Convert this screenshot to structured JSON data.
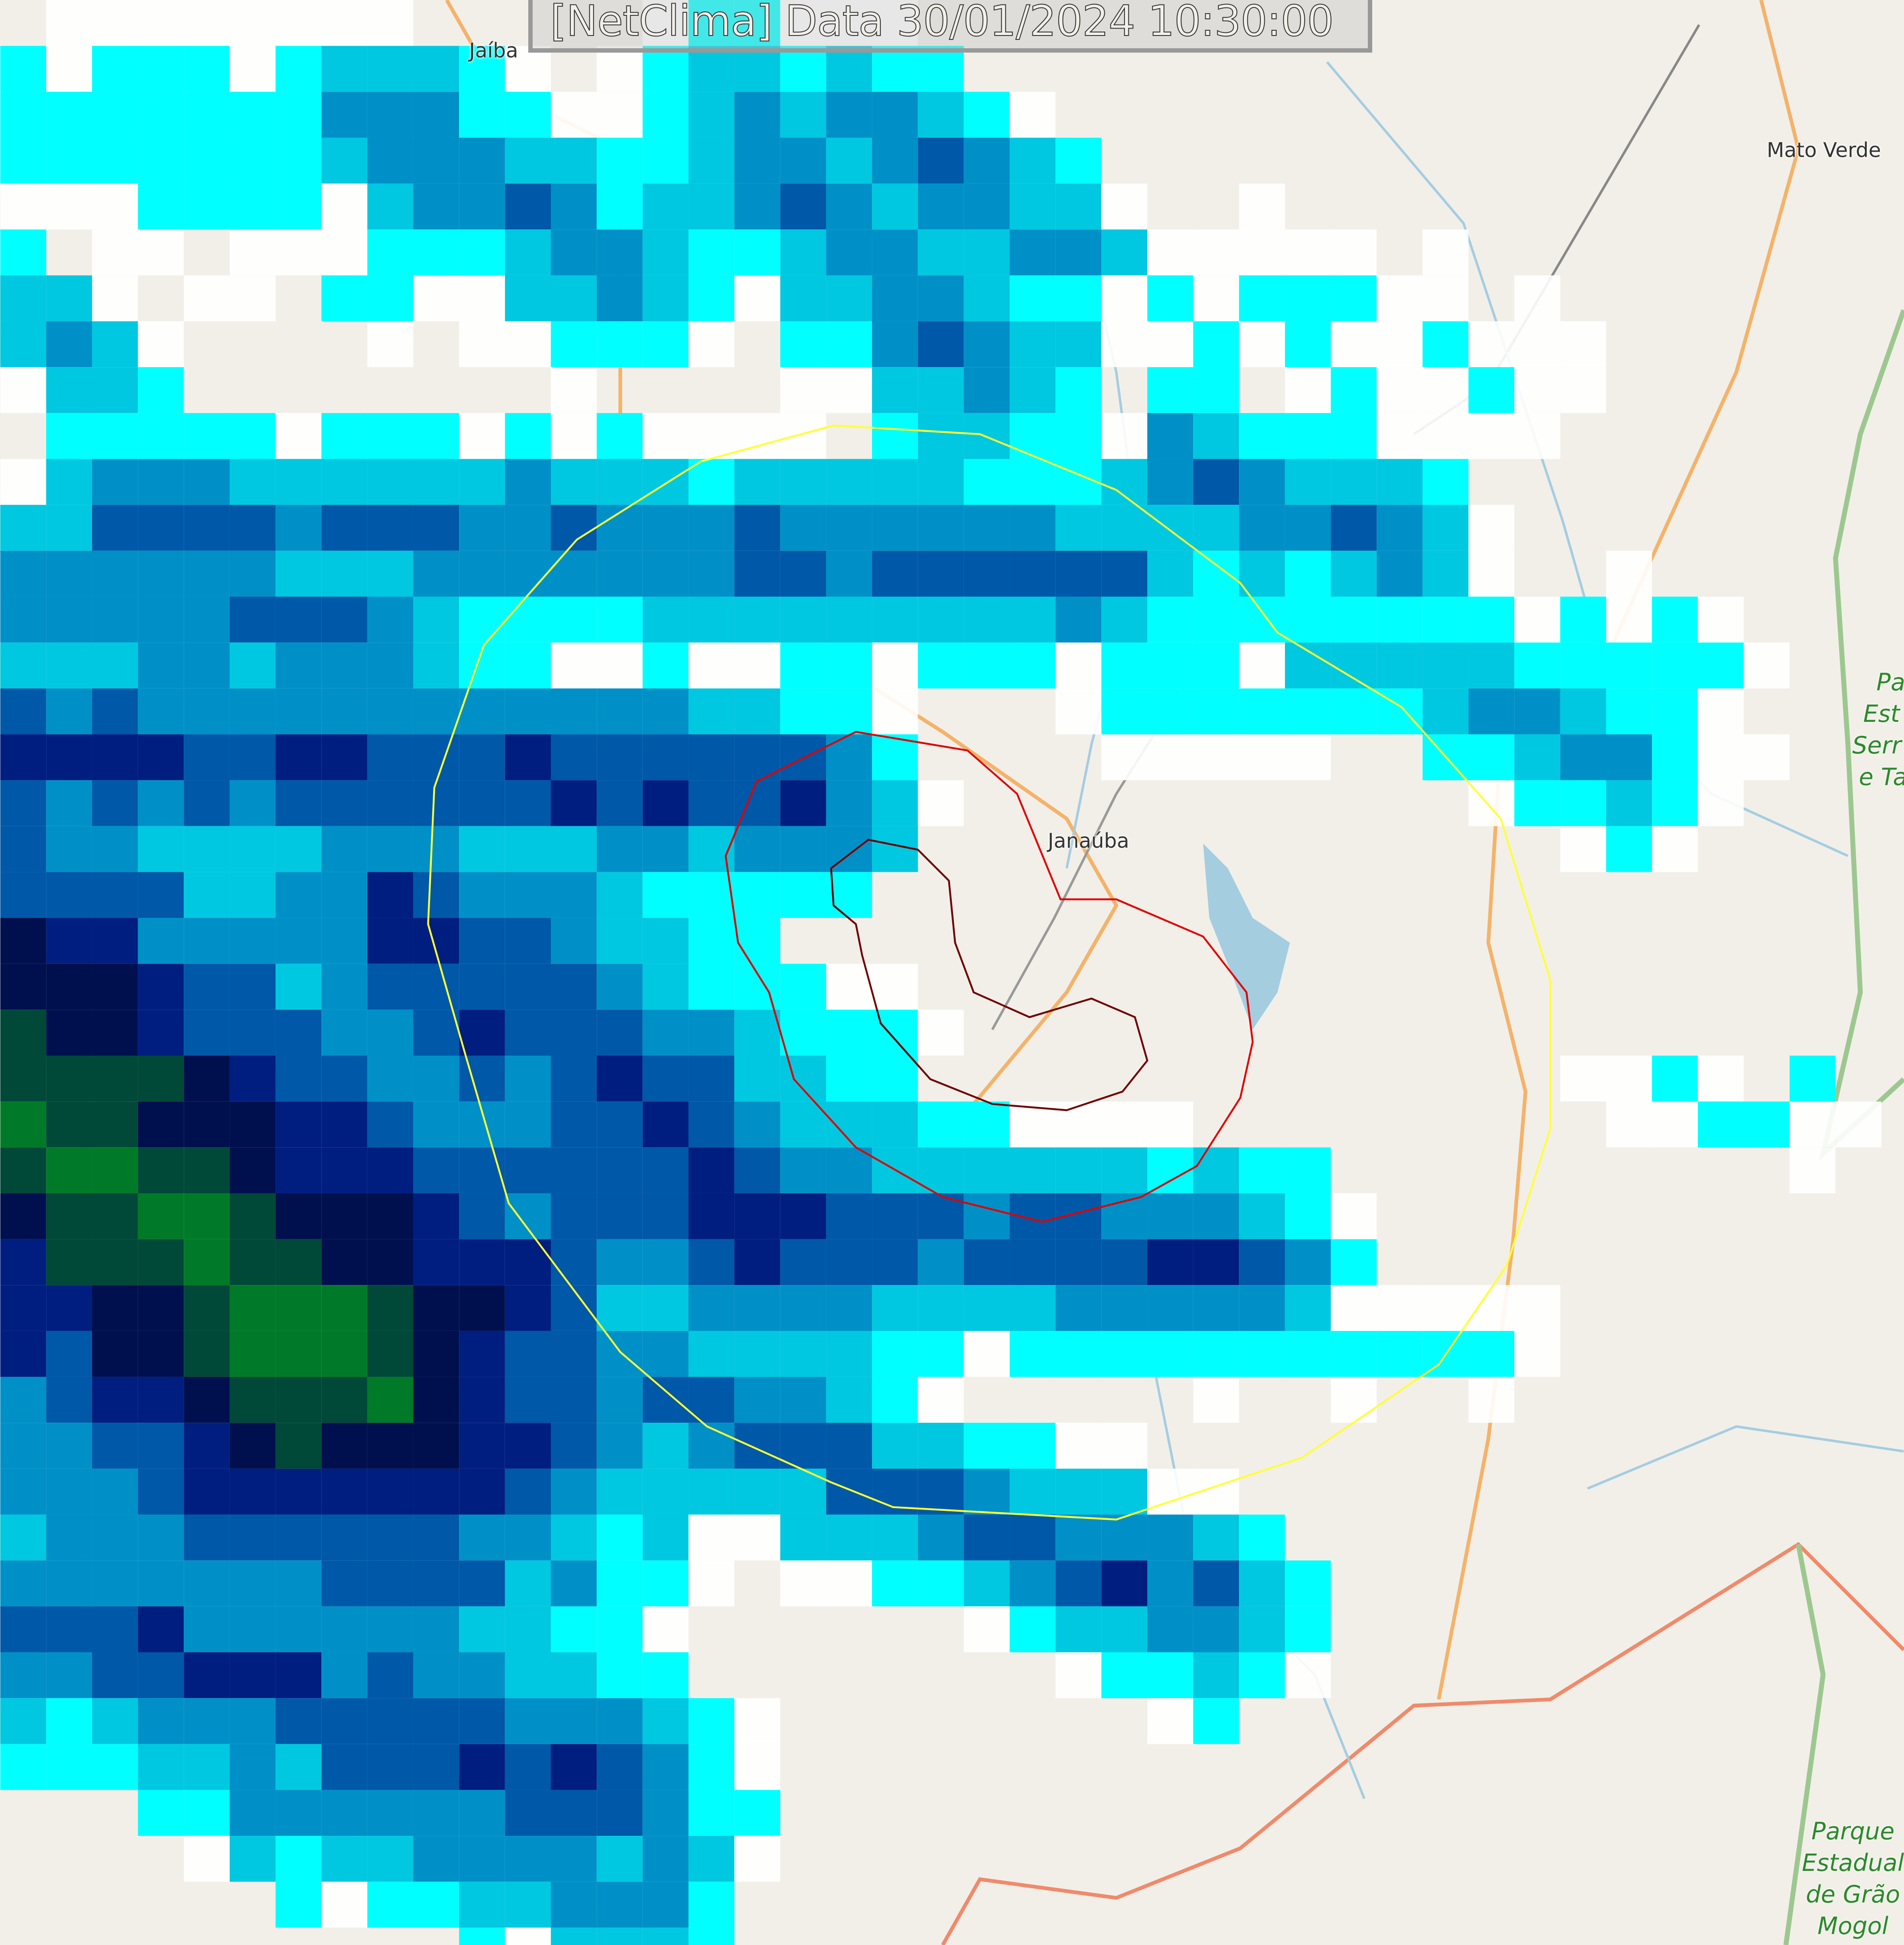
{
  "header": {
    "title": "[NetClima] Data 30/01/2024 10:30:00"
  },
  "places": {
    "jaiba": "Jaíba",
    "mato_verde": "Mato Verde",
    "janauba": "Janaúba"
  },
  "parks": {
    "serra": [
      "Pa",
      "Est",
      "Serr",
      "e Ta"
    ],
    "grao_mogol": [
      "Parque",
      "Estadual",
      "de Grão",
      "Mogol"
    ]
  },
  "colors": {
    "background": "#f2efe9",
    "road": "#f4b36a",
    "river": "#a4cde0",
    "outer_range_ring": "#ffff33",
    "middle_range_ring": "#e00000",
    "inner_range_ring": "#700000",
    "radar_scale": [
      "#ffffff",
      "#00ffff",
      "#00c8e0",
      "#0090c8",
      "#0058a8",
      "#001e80",
      "#00104e",
      "#004838",
      "#007a28",
      "#00c800",
      "#33ff00"
    ]
  }
}
